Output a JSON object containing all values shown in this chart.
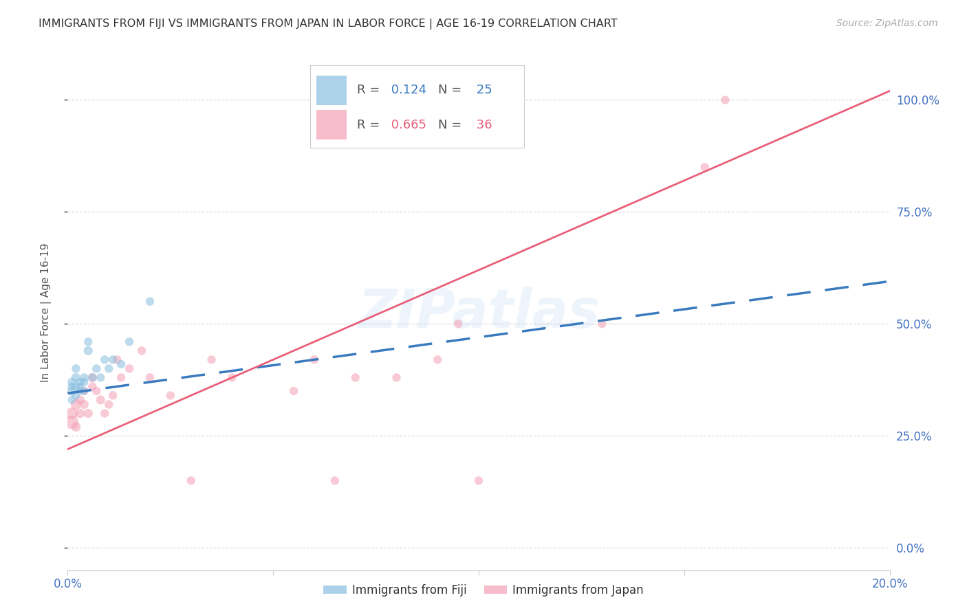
{
  "title": "IMMIGRANTS FROM FIJI VS IMMIGRANTS FROM JAPAN IN LABOR FORCE | AGE 16-19 CORRELATION CHART",
  "source": "Source: ZipAtlas.com",
  "ylabel": "In Labor Force | Age 16-19",
  "fiji_r": 0.124,
  "fiji_n": 25,
  "japan_r": 0.665,
  "japan_n": 36,
  "fiji_color": "#89bfe0",
  "japan_color": "#f4a0b5",
  "fiji_line_color": "#3a7abf",
  "japan_line_color": "#e8607a",
  "tick_color": "#4472c4",
  "grid_color": "#cccccc",
  "watermark": "ZIPatlas",
  "xlim": [
    0.0,
    0.2
  ],
  "ylim": [
    -0.05,
    1.1
  ],
  "yticks": [
    0.0,
    0.25,
    0.5,
    0.75,
    1.0
  ],
  "yticklabels": [
    "0.0%",
    "25.0%",
    "50.0%",
    "75.0%",
    "100.0%"
  ],
  "xticks": [
    0.0,
    0.05,
    0.1,
    0.15,
    0.2
  ],
  "xticklabels": [
    "0.0%",
    "",
    "",
    "",
    "20.0%"
  ],
  "fiji_x": [
    0.001,
    0.001,
    0.001,
    0.001,
    0.002,
    0.002,
    0.002,
    0.002,
    0.003,
    0.003,
    0.003,
    0.004,
    0.004,
    0.004,
    0.005,
    0.005,
    0.006,
    0.007,
    0.008,
    0.009,
    0.01,
    0.011,
    0.013,
    0.015,
    0.02
  ],
  "fiji_y": [
    0.35,
    0.37,
    0.33,
    0.36,
    0.38,
    0.36,
    0.34,
    0.4,
    0.37,
    0.35,
    0.36,
    0.37,
    0.35,
    0.38,
    0.44,
    0.46,
    0.38,
    0.4,
    0.38,
    0.42,
    0.4,
    0.42,
    0.41,
    0.46,
    0.55
  ],
  "fiji_sizes": [
    100,
    80,
    70,
    80,
    90,
    80,
    70,
    80,
    80,
    70,
    70,
    80,
    70,
    80,
    90,
    80,
    80,
    80,
    80,
    80,
    80,
    80,
    80,
    80,
    80
  ],
  "japan_x": [
    0.001,
    0.001,
    0.002,
    0.002,
    0.003,
    0.003,
    0.004,
    0.004,
    0.005,
    0.006,
    0.006,
    0.007,
    0.008,
    0.009,
    0.01,
    0.011,
    0.012,
    0.013,
    0.015,
    0.018,
    0.02,
    0.025,
    0.03,
    0.035,
    0.04,
    0.055,
    0.06,
    0.065,
    0.07,
    0.08,
    0.09,
    0.095,
    0.1,
    0.13,
    0.155,
    0.16
  ],
  "japan_y": [
    0.28,
    0.3,
    0.32,
    0.27,
    0.3,
    0.33,
    0.32,
    0.35,
    0.3,
    0.36,
    0.38,
    0.35,
    0.33,
    0.3,
    0.32,
    0.34,
    0.42,
    0.38,
    0.4,
    0.44,
    0.38,
    0.34,
    0.15,
    0.42,
    0.38,
    0.35,
    0.42,
    0.15,
    0.38,
    0.38,
    0.42,
    0.5,
    0.15,
    0.5,
    0.85,
    1.0
  ],
  "japan_sizes": [
    200,
    150,
    120,
    100,
    100,
    90,
    90,
    80,
    90,
    80,
    90,
    80,
    90,
    80,
    80,
    80,
    80,
    80,
    80,
    80,
    80,
    80,
    80,
    80,
    80,
    80,
    80,
    80,
    80,
    80,
    80,
    80,
    80,
    80,
    80,
    80
  ],
  "fiji_line_x": [
    0.0,
    0.2
  ],
  "fiji_line_y": [
    0.345,
    0.595
  ],
  "japan_line_x": [
    0.0,
    0.2
  ],
  "japan_line_y": [
    0.22,
    1.02
  ]
}
